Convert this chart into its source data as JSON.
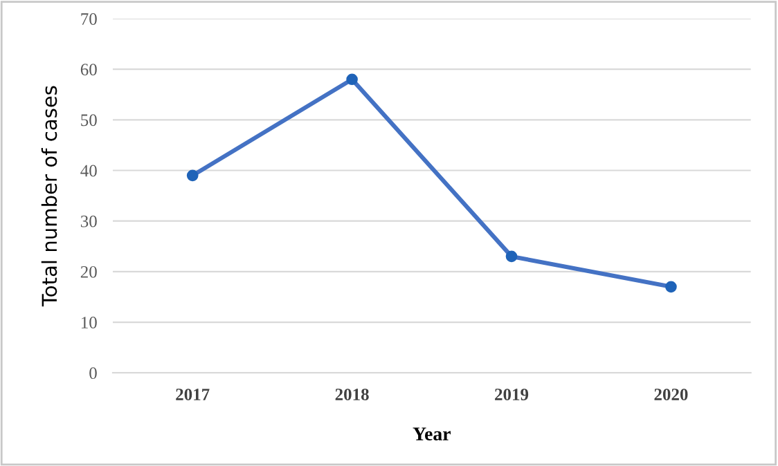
{
  "chart_data": {
    "type": "line",
    "xlabel": "Year",
    "ylabel": "Total number of cases",
    "categories": [
      "2017",
      "2018",
      "2019",
      "2020"
    ],
    "series": [
      {
        "color": "#4472c4",
        "values": [
          39,
          58,
          23,
          17
        ]
      }
    ],
    "ylim": [
      0,
      70
    ],
    "yticks": [
      0,
      10,
      20,
      30,
      40,
      50,
      60,
      70
    ],
    "grid": "y",
    "marker": "circle",
    "line_style": "solid",
    "legend": false
  }
}
